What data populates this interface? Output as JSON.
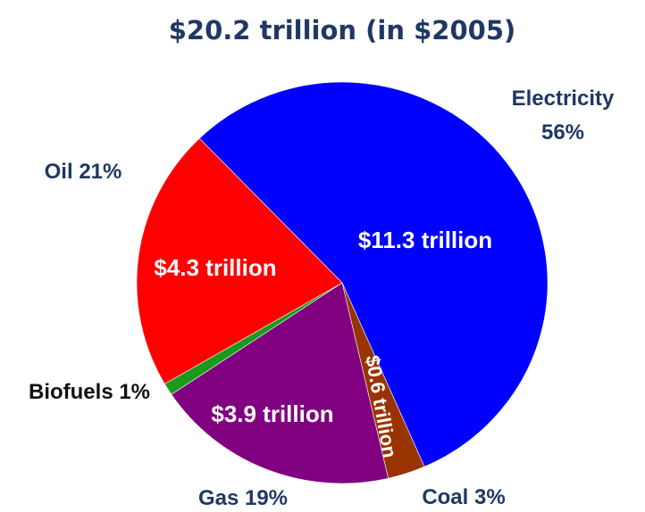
{
  "chart_data": {
    "type": "pie",
    "title": "$20.2 trillion (in $2005)",
    "slices": [
      {
        "category": "Electricity",
        "percent_label": "56%",
        "value_label": "$11.3 trillion",
        "value": 11.3,
        "color": "#0000ff"
      },
      {
        "category": "Coal",
        "percent_label": "3%",
        "value_label": "$0.6 trillion",
        "value": 0.6,
        "color": "#993300"
      },
      {
        "category": "Gas",
        "percent_label": "19%",
        "value_label": "$3.9 trillion",
        "value": 3.9,
        "color": "#800080"
      },
      {
        "category": "Biofuels",
        "percent_label": "1%",
        "value_label": "",
        "value": 0.2,
        "color": "#1a9a1a"
      },
      {
        "category": "Oil",
        "percent_label": "21%",
        "value_label": "$4.3 trillion",
        "value": 4.3,
        "color": "#ff0000"
      }
    ]
  }
}
